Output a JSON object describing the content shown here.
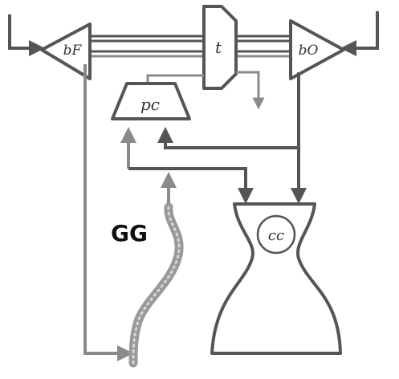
{
  "labels": {
    "fuel_booster": "bF",
    "turbine": "t",
    "oxidizer_booster": "bO",
    "preburner_controller": "pc",
    "gas_generator": "GG",
    "combustion_chamber": "cc"
  },
  "colors": {
    "line": "#555555",
    "light_line": "#8a8a8a",
    "gg_pipe": "#999999",
    "text": "#333333"
  }
}
